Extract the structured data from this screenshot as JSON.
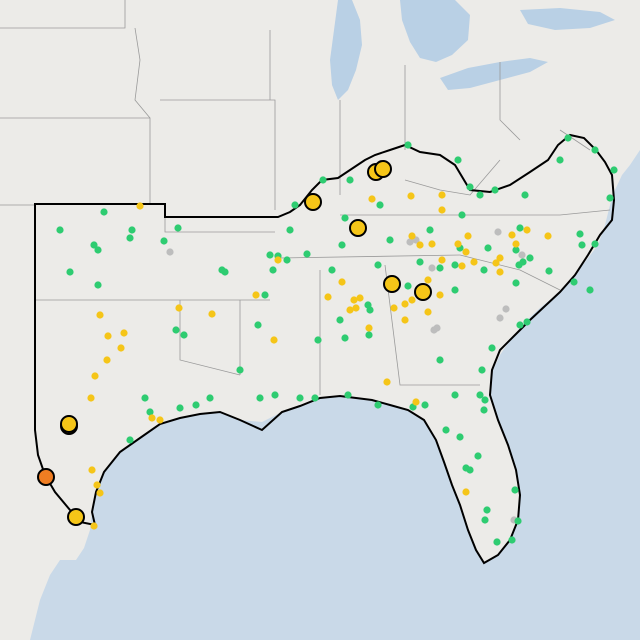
{
  "map": {
    "colors": {
      "land": "#ecebe8",
      "water": "#c9d9e8",
      "lake": "#b9d0e5",
      "state_border": "#9a9a9a",
      "region_outline": "#000000",
      "marker_green": "#2ecc71",
      "marker_yellow": "#f5c518",
      "marker_gray": "#bdbdbd",
      "marker_orange": "#ef7d22"
    },
    "marker_types": [
      "small-green-dot",
      "small-yellow-dot",
      "small-gray-dot",
      "large-yellow-circle",
      "large-orange-circle"
    ]
  }
}
